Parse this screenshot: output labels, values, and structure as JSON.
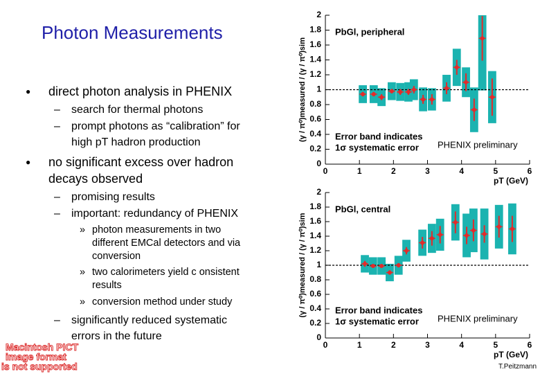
{
  "slide": {
    "title": "Photon Measurements",
    "bullets": [
      {
        "lines": [
          "direct photon analysis in PHENIX"
        ],
        "sub": [
          {
            "lines": [
              "search for thermal photons"
            ]
          },
          {
            "lines": [
              "prompt photons as “calibration” for",
              "high pT hadron production"
            ]
          }
        ]
      },
      {
        "lines": [
          "no significant excess over hadron",
          "decays observed"
        ],
        "sub": [
          {
            "lines": [
              "promising results"
            ]
          },
          {
            "lines": [
              "important: redundancy of PHENIX"
            ],
            "sub": [
              {
                "lines": [
                  "photon measurements in two",
                  "different EMCal detectors and via",
                  "conversion"
                ]
              },
              {
                "lines": [
                  "two calorimeters yield c onsistent",
                  "results"
                ]
              },
              {
                "lines": [
                  "conversion method under study"
                ]
              }
            ]
          },
          {
            "lines": [
              "significantly reduced systematic",
              "errors in the future"
            ]
          }
        ]
      }
    ],
    "placeholder": [
      "Macintosh PICT",
      "image format",
      "is not supported"
    ],
    "footer": "T.Peitzmann"
  },
  "chart_data": [
    {
      "type": "errorbar",
      "annotations": [
        "PbGl, peripheral",
        "Error band indicates",
        "1σ systematic error",
        "PHENIX preliminary"
      ],
      "x_label": "pT (GeV)",
      "y_label": "(γ / π⁰)measured / (γ / π⁰)sim",
      "x": [
        1.1,
        1.42,
        1.65,
        1.95,
        2.2,
        2.44,
        2.6,
        2.87,
        3.13,
        3.56,
        3.86,
        4.13,
        4.37,
        4.61,
        4.9
      ],
      "values": [
        0.94,
        0.94,
        0.9,
        0.98,
        0.97,
        0.97,
        1.0,
        0.87,
        0.87,
        1.02,
        1.3,
        1.1,
        0.73,
        1.69,
        0.9
      ],
      "errors": [
        0.03,
        0.03,
        0.04,
        0.03,
        0.04,
        0.04,
        0.05,
        0.06,
        0.07,
        0.08,
        0.1,
        0.12,
        0.15,
        0.3,
        0.25
      ],
      "sys_errors": [
        0.12,
        0.12,
        0.12,
        0.12,
        0.12,
        0.13,
        0.14,
        0.16,
        0.15,
        0.18,
        0.25,
        0.2,
        0.3,
        0.7,
        0.35
      ],
      "ref_line": 1,
      "marker_color": "#e32b2b",
      "band_color": "#1bb3b0",
      "xlim": [
        0,
        6
      ],
      "ylim": [
        0,
        2
      ],
      "xticks": [
        0,
        1,
        2,
        3,
        4,
        5,
        6
      ],
      "yticks": [
        0,
        0.2,
        0.4,
        0.6,
        0.8,
        1,
        1.2,
        1.4,
        1.6,
        1.8,
        2
      ]
    },
    {
      "type": "errorbar",
      "annotations": [
        "PbGl, central",
        "Error band indicates",
        "1σ systematic error",
        "PHENIX preliminary"
      ],
      "x_label": "pT (GeV)",
      "y_label": "(γ / π⁰)measured / (γ / π⁰)sim",
      "x": [
        1.16,
        1.4,
        1.65,
        1.89,
        2.15,
        2.38,
        2.85,
        3.13,
        3.37,
        3.82,
        4.15,
        4.35,
        4.67,
        5.1,
        5.49
      ],
      "values": [
        1.02,
        0.99,
        0.99,
        0.9,
        1.0,
        1.2,
        1.31,
        1.37,
        1.42,
        1.59,
        1.41,
        1.48,
        1.43,
        1.53,
        1.5
      ],
      "errors": [
        0.04,
        0.02,
        0.02,
        0.03,
        0.03,
        0.05,
        0.08,
        0.1,
        0.12,
        0.15,
        0.12,
        0.15,
        0.12,
        0.15,
        0.18
      ],
      "sys_errors": [
        0.12,
        0.12,
        0.12,
        0.12,
        0.13,
        0.15,
        0.18,
        0.2,
        0.22,
        0.25,
        0.3,
        0.3,
        0.35,
        0.3,
        0.35
      ],
      "ref_line": 1,
      "marker_color": "#e32b2b",
      "band_color": "#1bb3b0",
      "xlim": [
        0,
        6
      ],
      "ylim": [
        0,
        2
      ],
      "xticks": [
        0,
        1,
        2,
        3,
        4,
        5,
        6
      ],
      "yticks": [
        0,
        0.2,
        0.4,
        0.6,
        0.8,
        1,
        1.2,
        1.4,
        1.6,
        1.8,
        2
      ]
    }
  ]
}
